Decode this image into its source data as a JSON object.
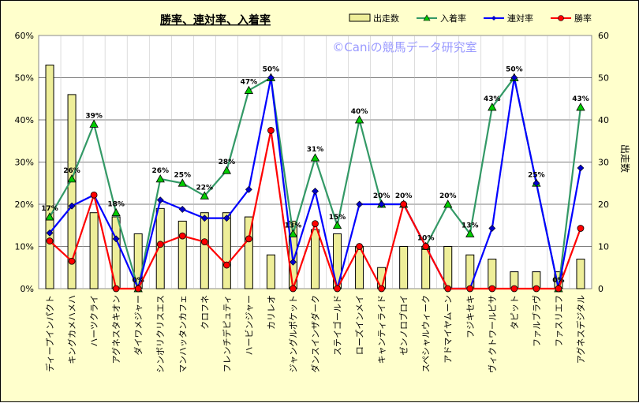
{
  "chart_data": {
    "type": "bar+line",
    "title": "勝率、連対率、入着率",
    "watermark": "©Caniの競馬データ研究室",
    "categories": [
      "ディープインパクト",
      "キングカメハメハ",
      "ハーツクライ",
      "アグネスタキオン",
      "ダイワメジャー",
      "シンボリクリスエス",
      "マンハッタンカフェ",
      "クロフネ",
      "フレンチデピュティ",
      "ハービンジャー",
      "カリレオ",
      "ジャングルポケット",
      "ダンスインザダーク",
      "ステイゴールド",
      "ローズインメイ",
      "キャンティライド",
      "ゼンノロブロイ",
      "スペシャルウィーク",
      "アドマイヤムーン",
      "フジキセキ",
      "ヴィクトワールピサ",
      "タピット",
      "ファルブラヴ",
      "ファスリエフ",
      "アグネスデジタル"
    ],
    "left_axis": {
      "min": 0,
      "max": 60,
      "ticks": [
        "0%",
        "10%",
        "20%",
        "30%",
        "40%",
        "50%",
        "60%"
      ]
    },
    "right_axis": {
      "min": 0,
      "max": 60,
      "ticks": [
        "0",
        "10",
        "20",
        "30",
        "40",
        "50",
        "60"
      ],
      "label": "出走数"
    },
    "legend": {
      "position": "top-right",
      "items": [
        "出走数",
        "入着率",
        "連対率",
        "勝率"
      ]
    },
    "series": [
      {
        "name": "出走数",
        "kind": "bar",
        "color": "#eeee99",
        "values": [
          53,
          46,
          18,
          17,
          13,
          19,
          16,
          18,
          18,
          17,
          8,
          16,
          14,
          13,
          10,
          5,
          10,
          10,
          10,
          8,
          7,
          4,
          4,
          4,
          7
        ]
      },
      {
        "name": "入着率",
        "kind": "line",
        "color": "#339966",
        "marker": "triangle",
        "values": [
          17,
          26,
          39,
          18,
          0,
          26,
          25,
          22,
          28,
          47,
          50,
          13,
          31,
          15,
          40,
          20,
          20,
          10,
          20,
          13,
          43,
          50,
          25,
          0,
          43
        ],
        "labels": [
          "17%",
          "26%",
          "39%",
          "18%",
          "0%",
          "26%",
          "25%",
          "22%",
          "28%",
          "47%",
          "50%",
          "13%",
          "31%",
          "15%",
          "40%",
          "20%",
          "20%",
          "10%",
          "20%",
          "13%",
          "43%",
          "50%",
          "25%",
          "0%",
          "43%"
        ]
      },
      {
        "name": "連対率",
        "kind": "line",
        "color": "#0000ff",
        "marker": "diamond",
        "values": [
          13.2,
          19.6,
          22.2,
          11.8,
          0,
          21,
          18.8,
          16.7,
          16.7,
          23.5,
          50,
          6.3,
          23.1,
          0,
          20,
          20,
          20,
          10,
          0,
          0,
          14.3,
          50,
          25,
          0,
          28.6
        ]
      },
      {
        "name": "勝率",
        "kind": "line",
        "color": "#ff0000",
        "marker": "circle",
        "values": [
          11.3,
          6.5,
          22.2,
          0,
          0,
          10.5,
          12.5,
          11.1,
          5.6,
          11.8,
          37.5,
          0,
          15.4,
          0,
          10,
          0,
          20,
          10,
          0,
          0,
          0,
          0,
          0,
          0,
          14.3
        ]
      }
    ]
  }
}
